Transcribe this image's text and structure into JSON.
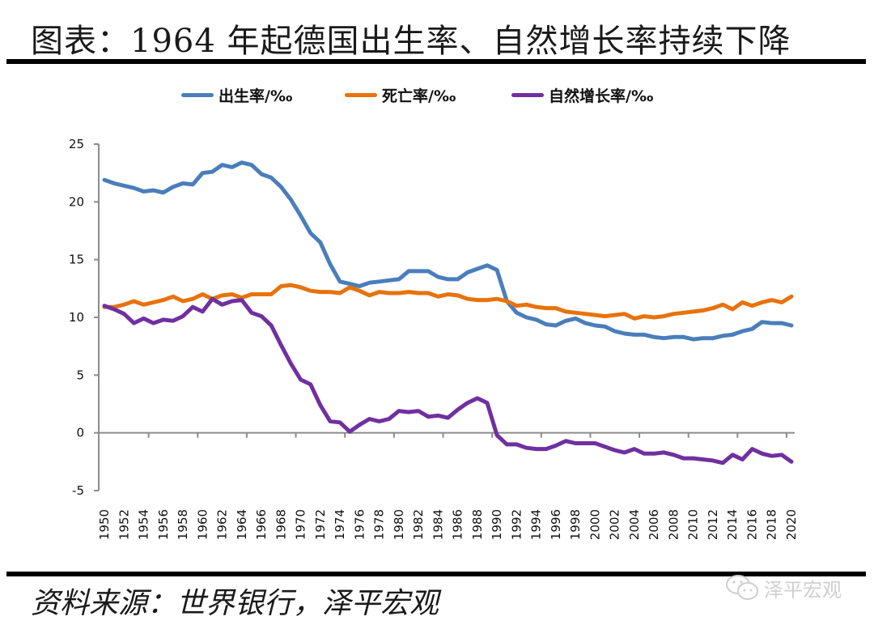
{
  "title": "图表：1964 年起德国出生率、自然增长率持续下降",
  "source": "资料来源：世界银行，泽平宏观",
  "watermark": {
    "icon": "wechat-icon",
    "text": "泽平宏观"
  },
  "chart_data": {
    "type": "line",
    "title": "图表：1964 年起德国出生率、自然增长率持续下降",
    "xlabel": "",
    "ylabel": "",
    "ylim": [
      -5,
      25
    ],
    "xlim": [
      1950,
      2020
    ],
    "yticks": [
      "25",
      "20",
      "15",
      "10",
      "5",
      "0",
      "-5"
    ],
    "ytick_values": [
      25,
      20,
      15,
      10,
      5,
      0,
      -5
    ],
    "xtick_labels": [
      "1950",
      "1952",
      "1954",
      "1956",
      "1958",
      "1960",
      "1962",
      "1964",
      "1966",
      "1968",
      "1970",
      "1972",
      "1974",
      "1976",
      "1978",
      "1980",
      "1982",
      "1984",
      "1986",
      "1988",
      "1990",
      "1992",
      "1994",
      "1996",
      "1998",
      "2000",
      "2002",
      "2004",
      "2006",
      "2008",
      "2010",
      "2012",
      "2014",
      "2016",
      "2018",
      "2020"
    ],
    "legend_position": "top-center",
    "grid": false,
    "x": [
      1950,
      1951,
      1952,
      1953,
      1954,
      1955,
      1956,
      1957,
      1958,
      1959,
      1960,
      1961,
      1962,
      1963,
      1964,
      1965,
      1966,
      1967,
      1968,
      1969,
      1970,
      1971,
      1972,
      1973,
      1974,
      1975,
      1976,
      1977,
      1978,
      1979,
      1980,
      1981,
      1982,
      1983,
      1984,
      1985,
      1986,
      1987,
      1988,
      1989,
      1990,
      1991,
      1992,
      1993,
      1994,
      1995,
      1996,
      1997,
      1998,
      1999,
      2000,
      2001,
      2002,
      2003,
      2004,
      2005,
      2006,
      2007,
      2008,
      2009,
      2010,
      2011,
      2012,
      2013,
      2014,
      2015,
      2016,
      2017,
      2018,
      2019,
      2020
    ],
    "series": [
      {
        "name": "出生率/‰",
        "color": "#4a7ebb",
        "values": [
          21.9,
          21.6,
          21.4,
          21.2,
          20.9,
          21.0,
          20.8,
          21.3,
          21.6,
          21.5,
          22.5,
          22.6,
          23.2,
          23.0,
          23.4,
          23.2,
          22.4,
          22.1,
          21.3,
          20.2,
          18.8,
          17.3,
          16.5,
          14.6,
          13.1,
          12.9,
          12.7,
          13.0,
          13.1,
          13.2,
          13.3,
          14.0,
          14.0,
          14.0,
          13.5,
          13.3,
          13.3,
          13.9,
          14.2,
          14.5,
          14.1,
          11.4,
          10.4,
          10.0,
          9.8,
          9.4,
          9.3,
          9.7,
          9.9,
          9.5,
          9.3,
          9.2,
          8.8,
          8.6,
          8.5,
          8.5,
          8.3,
          8.2,
          8.3,
          8.3,
          8.1,
          8.2,
          8.2,
          8.4,
          8.5,
          8.8,
          9.0,
          9.6,
          9.5,
          9.5,
          9.3
        ]
      },
      {
        "name": "死亡率/‰",
        "color": "#e8720c",
        "values": [
          10.9,
          10.9,
          11.1,
          11.4,
          11.1,
          11.3,
          11.5,
          11.8,
          11.4,
          11.6,
          12.0,
          11.6,
          11.9,
          12.0,
          11.7,
          12.0,
          12.0,
          12.0,
          12.7,
          12.8,
          12.6,
          12.3,
          12.2,
          12.2,
          12.1,
          12.6,
          12.3,
          11.9,
          12.2,
          12.1,
          12.1,
          12.2,
          12.1,
          12.1,
          11.8,
          12.0,
          11.9,
          11.6,
          11.5,
          11.5,
          11.6,
          11.4,
          11.0,
          11.1,
          10.9,
          10.8,
          10.8,
          10.5,
          10.4,
          10.3,
          10.2,
          10.1,
          10.2,
          10.3,
          9.9,
          10.1,
          10.0,
          10.1,
          10.3,
          10.4,
          10.5,
          10.6,
          10.8,
          11.1,
          10.7,
          11.3,
          11.0,
          11.3,
          11.5,
          11.3,
          11.8
        ]
      },
      {
        "name": "自然增长率/‰",
        "color": "#7030a0",
        "values": [
          11.0,
          10.7,
          10.3,
          9.5,
          9.9,
          9.5,
          9.8,
          9.7,
          10.1,
          10.9,
          10.5,
          11.6,
          11.1,
          11.4,
          11.5,
          10.4,
          10.1,
          9.3,
          7.6,
          6.0,
          4.6,
          4.2,
          2.4,
          1.0,
          0.9,
          0.1,
          0.7,
          1.2,
          1.0,
          1.2,
          1.9,
          1.8,
          1.9,
          1.4,
          1.5,
          1.3,
          2.0,
          2.6,
          3.0,
          2.6,
          -0.2,
          -1.0,
          -1.0,
          -1.3,
          -1.4,
          -1.4,
          -1.1,
          -0.7,
          -0.9,
          -0.9,
          -0.9,
          -1.2,
          -1.5,
          -1.7,
          -1.4,
          -1.8,
          -1.8,
          -1.7,
          -1.9,
          -2.2,
          -2.2,
          -2.3,
          -2.4,
          -2.6,
          -1.9,
          -2.3,
          -1.4,
          -1.8,
          -2.0,
          -1.9,
          -2.5
        ]
      }
    ]
  }
}
